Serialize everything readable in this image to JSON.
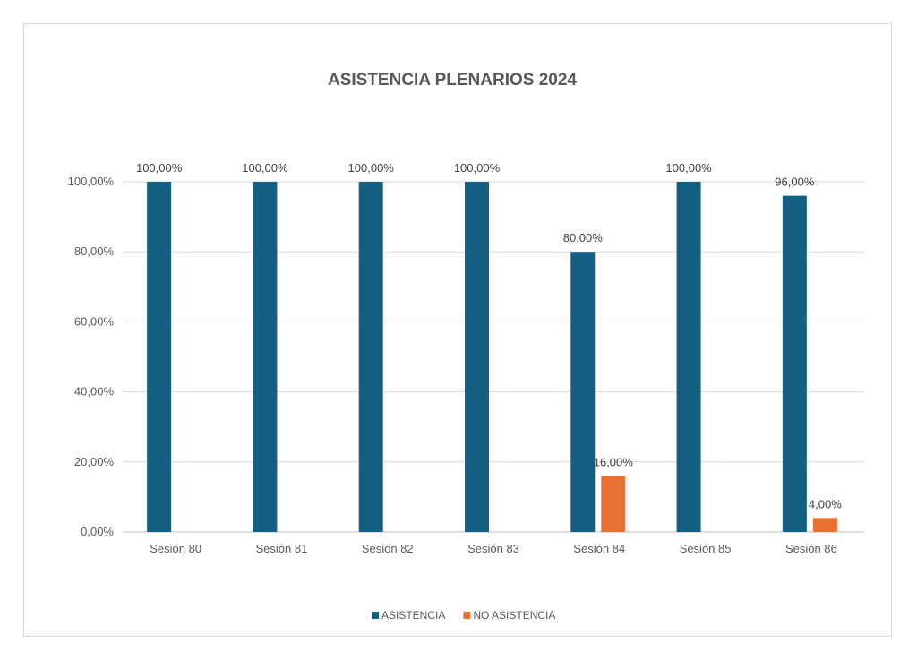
{
  "chart_data": {
    "type": "bar",
    "title": "ASISTENCIA PLENARIOS 2024",
    "categories": [
      "Sesión 80",
      "Sesión 81",
      "Sesión 82",
      "Sesión 83",
      "Sesión 84",
      "Sesión 85",
      "Sesión 86"
    ],
    "series": [
      {
        "name": "ASISTENCIA",
        "color": "#156082",
        "values": [
          100,
          100,
          100,
          100,
          80,
          100,
          96
        ],
        "labels": [
          "100,00%",
          "100,00%",
          "100,00%",
          "100,00%",
          "80,00%",
          "100,00%",
          "96,00%"
        ]
      },
      {
        "name": "NO ASISTENCIA",
        "color": "#E97132",
        "values": [
          0,
          0,
          0,
          0,
          16,
          0,
          4
        ],
        "labels": [
          "",
          "",
          "",
          "",
          "16,00%",
          "",
          "4,00%"
        ]
      }
    ],
    "yticks": [
      "0,00%",
      "20,00%",
      "40,00%",
      "60,00%",
      "80,00%",
      "100,00%"
    ],
    "ylim": [
      0,
      100
    ],
    "grid": true,
    "legend": "bottom"
  }
}
